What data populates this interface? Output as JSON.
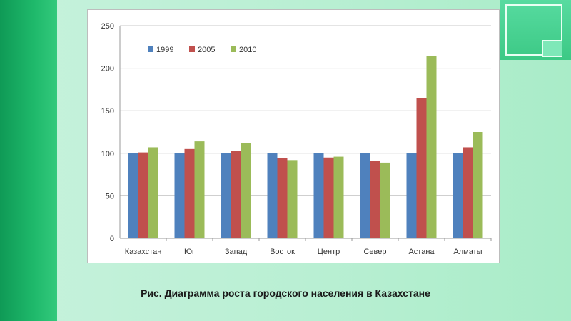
{
  "caption": "Рис. Диаграмма роста городского населения в Казахстане",
  "chart_data": {
    "type": "bar",
    "categories": [
      "Казахстан",
      "Юг",
      "Запад",
      "Восток",
      "Центр",
      "Север",
      "Астана",
      "Алматы"
    ],
    "series": [
      {
        "name": "1999",
        "color": "#4f81bd",
        "values": [
          100,
          100,
          100,
          100,
          100,
          100,
          100,
          100
        ]
      },
      {
        "name": "2005",
        "color": "#c0504d",
        "values": [
          101,
          105,
          103,
          94,
          95,
          91,
          165,
          107
        ]
      },
      {
        "name": "2010",
        "color": "#9bbb59",
        "values": [
          107,
          114,
          112,
          92,
          96,
          89,
          214,
          125
        ]
      }
    ],
    "ylim": [
      0,
      250
    ],
    "yticks": [
      0,
      50,
      100,
      150,
      200,
      250
    ],
    "grid": true,
    "legend_position": "top-left",
    "title": "",
    "xlabel": "",
    "ylabel": ""
  }
}
